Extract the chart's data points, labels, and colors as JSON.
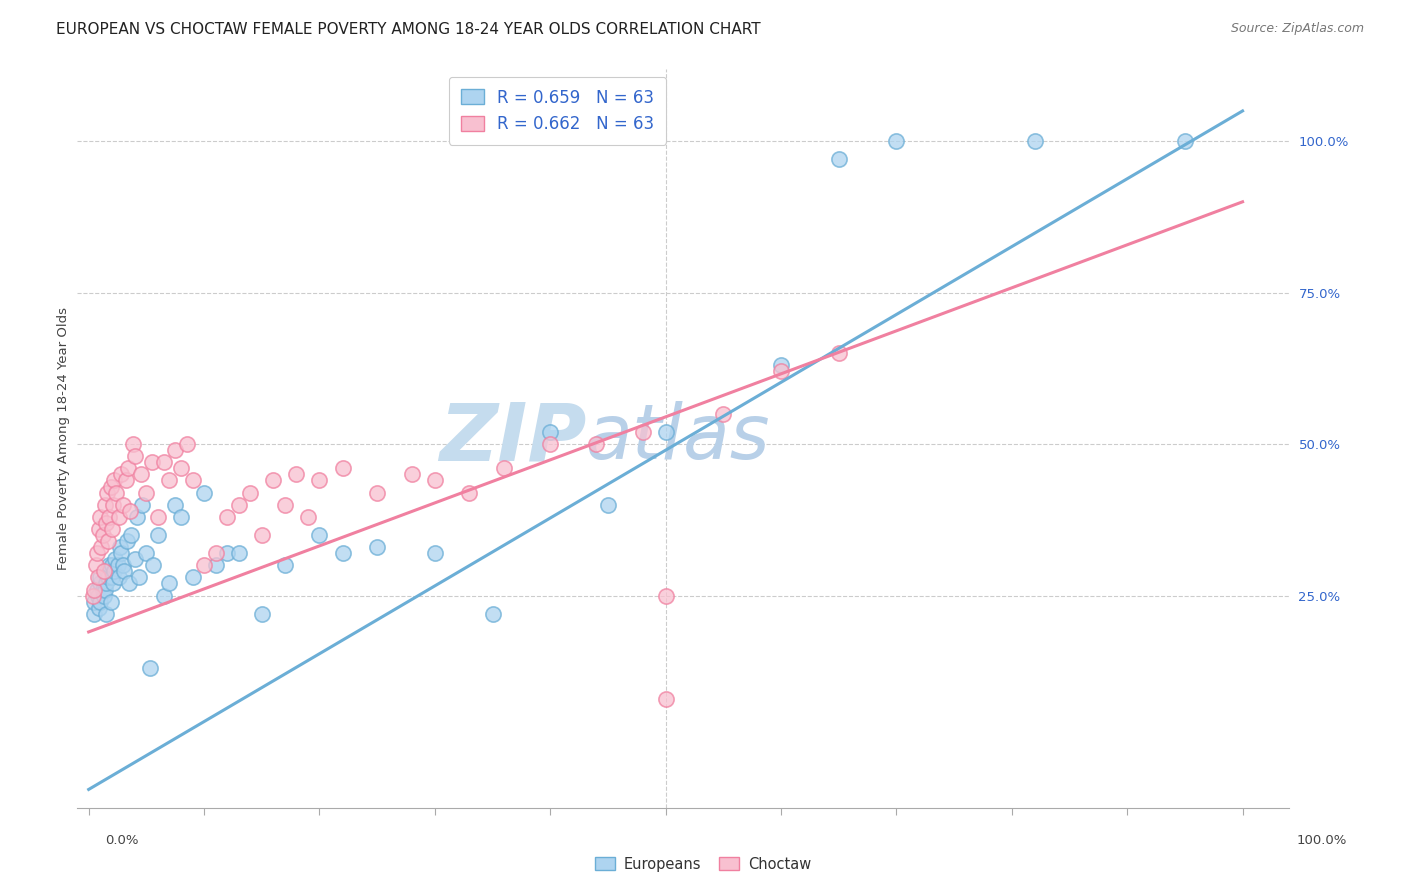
{
  "title": "EUROPEAN VS CHOCTAW FEMALE POVERTY AMONG 18-24 YEAR OLDS CORRELATION CHART",
  "source": "Source: ZipAtlas.com",
  "ylabel": "Female Poverty Among 18-24 Year Olds",
  "blue_color": "#6baed6",
  "blue_face": "#aed4f0",
  "pink_color": "#f080a0",
  "pink_face": "#f8c0d0",
  "watermark_zip": "ZIP",
  "watermark_atlas": "atlas",
  "watermark_color_zip": "#c8dff0",
  "watermark_color_atlas": "#b0cce8",
  "grid_color": "#cccccc",
  "right_tick_color": "#3366cc",
  "eu_line_x0": 0.0,
  "eu_line_y0": -0.07,
  "eu_line_x1": 1.0,
  "eu_line_y1": 1.05,
  "ch_line_x0": 0.0,
  "ch_line_y0": 0.19,
  "ch_line_x1": 1.0,
  "ch_line_y1": 0.9,
  "xlim": [
    -0.01,
    1.04
  ],
  "ylim": [
    -0.1,
    1.12
  ],
  "eu_x": [
    0.005,
    0.005,
    0.007,
    0.008,
    0.009,
    0.01,
    0.01,
    0.01,
    0.012,
    0.013,
    0.014,
    0.015,
    0.015,
    0.016,
    0.017,
    0.018,
    0.019,
    0.02,
    0.02,
    0.021,
    0.022,
    0.023,
    0.025,
    0.026,
    0.027,
    0.028,
    0.03,
    0.031,
    0.033,
    0.035,
    0.037,
    0.04,
    0.042,
    0.044,
    0.046,
    0.05,
    0.053,
    0.056,
    0.06,
    0.065,
    0.07,
    0.075,
    0.08,
    0.09,
    0.1,
    0.11,
    0.12,
    0.13,
    0.15,
    0.17,
    0.2,
    0.22,
    0.25,
    0.3,
    0.35,
    0.4,
    0.45,
    0.5,
    0.6,
    0.65,
    0.7,
    0.82,
    0.95
  ],
  "eu_y": [
    0.22,
    0.24,
    0.26,
    0.25,
    0.23,
    0.27,
    0.28,
    0.24,
    0.26,
    0.25,
    0.26,
    0.22,
    0.27,
    0.29,
    0.28,
    0.3,
    0.24,
    0.28,
    0.3,
    0.27,
    0.29,
    0.31,
    0.3,
    0.28,
    0.33,
    0.32,
    0.3,
    0.29,
    0.34,
    0.27,
    0.35,
    0.31,
    0.38,
    0.28,
    0.4,
    0.32,
    0.13,
    0.3,
    0.35,
    0.25,
    0.27,
    0.4,
    0.38,
    0.28,
    0.42,
    0.3,
    0.32,
    0.32,
    0.22,
    0.3,
    0.35,
    0.32,
    0.33,
    0.32,
    0.22,
    0.52,
    0.4,
    0.52,
    0.63,
    0.97,
    1.0,
    1.0,
    1.0
  ],
  "ch_x": [
    0.004,
    0.005,
    0.006,
    0.007,
    0.008,
    0.009,
    0.01,
    0.011,
    0.012,
    0.013,
    0.014,
    0.015,
    0.016,
    0.017,
    0.018,
    0.019,
    0.02,
    0.021,
    0.022,
    0.024,
    0.026,
    0.028,
    0.03,
    0.032,
    0.034,
    0.036,
    0.038,
    0.04,
    0.045,
    0.05,
    0.055,
    0.06,
    0.065,
    0.07,
    0.075,
    0.08,
    0.085,
    0.09,
    0.1,
    0.11,
    0.12,
    0.13,
    0.14,
    0.15,
    0.16,
    0.17,
    0.18,
    0.19,
    0.2,
    0.22,
    0.25,
    0.28,
    0.3,
    0.33,
    0.36,
    0.4,
    0.44,
    0.48,
    0.5,
    0.55,
    0.6,
    0.65,
    0.5
  ],
  "ch_y": [
    0.25,
    0.26,
    0.3,
    0.32,
    0.28,
    0.36,
    0.38,
    0.33,
    0.35,
    0.29,
    0.4,
    0.37,
    0.42,
    0.34,
    0.38,
    0.43,
    0.36,
    0.4,
    0.44,
    0.42,
    0.38,
    0.45,
    0.4,
    0.44,
    0.46,
    0.39,
    0.5,
    0.48,
    0.45,
    0.42,
    0.47,
    0.38,
    0.47,
    0.44,
    0.49,
    0.46,
    0.5,
    0.44,
    0.3,
    0.32,
    0.38,
    0.4,
    0.42,
    0.35,
    0.44,
    0.4,
    0.45,
    0.38,
    0.44,
    0.46,
    0.42,
    0.45,
    0.44,
    0.42,
    0.46,
    0.5,
    0.5,
    0.52,
    0.25,
    0.55,
    0.62,
    0.65,
    0.08
  ],
  "legend_r_eu": "R = 0.659   N = 63",
  "legend_r_ch": "R = 0.662   N = 63",
  "legend_europeans": "Europeans",
  "legend_choctaw": "Choctaw"
}
